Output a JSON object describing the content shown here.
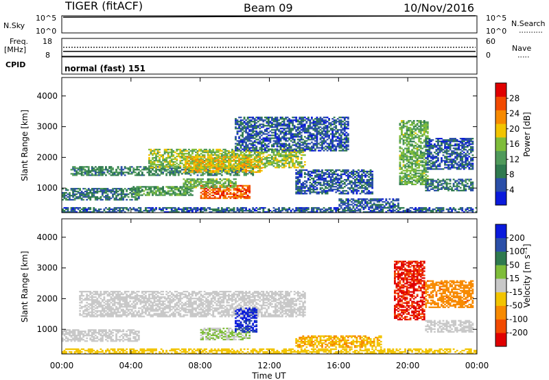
{
  "header": {
    "radar": "TIGER (fitACF)",
    "beam": "Beam 09",
    "date": "10/Nov/2016"
  },
  "top_panel": {
    "nsky_label": "N.Sky",
    "nsky_ticks": [
      "10^5",
      "10^0"
    ],
    "nsearch_label": "N.Search",
    "nsearch_ticks": [
      "10^5",
      "10^0"
    ],
    "freq_label_1": "Freq.",
    "freq_label_2": "[MHz]",
    "freq_ticks": [
      "18",
      "8"
    ],
    "nave_label": "Nave",
    "nave_ticks": [
      "60",
      "0"
    ],
    "cpid_label": "CPID",
    "cpid_text": "normal (fast) 151"
  },
  "colors": {
    "power_scale": [
      "#0a1adc",
      "#2b4fa8",
      "#2f7a4f",
      "#4f9a5a",
      "#7fbd3a",
      "#f2c400",
      "#f78a00",
      "#f24a00",
      "#e00000"
    ],
    "velocity_scale": [
      "#e00000",
      "#f24a00",
      "#f78a00",
      "#f2c400",
      "#c8c8c8",
      "#7fbd3a",
      "#2f7a4f",
      "#2b4fa8",
      "#0a1adc"
    ]
  },
  "chart_data": [
    {
      "type": "heatmap",
      "name": "power",
      "xlabel": "Time UT",
      "ylabel": "Slant Range [km]",
      "x_ticks": [
        "00:00",
        "04:00",
        "08:00",
        "12:00",
        "16:00",
        "20:00",
        "00:00"
      ],
      "x_hours": [
        0,
        4,
        8,
        12,
        16,
        20,
        24
      ],
      "y_ticks": [
        1000,
        2000,
        3000,
        4000
      ],
      "ylim": [
        200,
        4600
      ],
      "colorbar_label": "Power [dB]",
      "colorbar_ticks": [
        "4",
        "8",
        "12",
        "16",
        "20",
        "24",
        "28"
      ],
      "colorbar_range": [
        0,
        32
      ],
      "regions": [
        {
          "t0": 0,
          "t1": 24,
          "r0": 200,
          "r1": 350,
          "value": 6
        },
        {
          "t0": 0,
          "t1": 4.5,
          "r0": 600,
          "r1": 1000,
          "value": 8
        },
        {
          "t0": 4,
          "t1": 7.5,
          "r0": 750,
          "r1": 1050,
          "value": 12
        },
        {
          "t0": 0.5,
          "t1": 11,
          "r0": 1400,
          "r1": 1700,
          "value": 10
        },
        {
          "t0": 5,
          "t1": 14,
          "r0": 1650,
          "r1": 2250,
          "value": 16
        },
        {
          "t0": 7,
          "t1": 11.5,
          "r0": 1500,
          "r1": 2000,
          "value": 20
        },
        {
          "t0": 8,
          "t1": 10.8,
          "r0": 650,
          "r1": 1100,
          "value": 26
        },
        {
          "t0": 7,
          "t1": 10,
          "r0": 1000,
          "r1": 1300,
          "value": 14
        },
        {
          "t0": 10,
          "t1": 16.5,
          "r0": 2200,
          "r1": 3300,
          "value": 6
        },
        {
          "t0": 13.5,
          "t1": 18,
          "r0": 800,
          "r1": 1600,
          "value": 6
        },
        {
          "t0": 16,
          "t1": 19.5,
          "r0": 350,
          "r1": 650,
          "value": 6
        },
        {
          "t0": 19.5,
          "t1": 21.2,
          "r0": 1100,
          "r1": 3200,
          "value": 14
        },
        {
          "t0": 21,
          "t1": 23.8,
          "r0": 900,
          "r1": 1300,
          "value": 8
        },
        {
          "t0": 21,
          "t1": 23.8,
          "r0": 1600,
          "r1": 2600,
          "value": 6
        }
      ]
    },
    {
      "type": "heatmap",
      "name": "velocity",
      "xlabel": "Time UT",
      "ylabel": "Slant Range [km]",
      "x_ticks": [
        "00:00",
        "04:00",
        "08:00",
        "12:00",
        "16:00",
        "20:00",
        "00:00"
      ],
      "x_hours": [
        0,
        4,
        8,
        12,
        16,
        20,
        24
      ],
      "y_ticks": [
        1000,
        2000,
        3000,
        4000
      ],
      "ylim": [
        200,
        4600
      ],
      "colorbar_label": "Velocity [m s⁻¹]",
      "colorbar_ticks": [
        "-200",
        "-100",
        "-50",
        "-15",
        "15",
        "50",
        "100",
        "200"
      ],
      "colorbar_range": [
        -250,
        250
      ],
      "regions": [
        {
          "t0": 0,
          "t1": 24,
          "r0": 200,
          "r1": 350,
          "value": -60
        },
        {
          "t0": 0,
          "t1": 4.5,
          "r0": 600,
          "r1": 1000,
          "value": 0
        },
        {
          "t0": 1,
          "t1": 14,
          "r0": 1400,
          "r1": 2250,
          "value": 0
        },
        {
          "t0": 8,
          "t1": 10.8,
          "r0": 650,
          "r1": 1050,
          "value": 30
        },
        {
          "t0": 10,
          "t1": 11.2,
          "r0": 900,
          "r1": 1700,
          "value": 200
        },
        {
          "t0": 13.5,
          "t1": 18.5,
          "r0": 400,
          "r1": 800,
          "value": -80
        },
        {
          "t0": 19.2,
          "t1": 21.0,
          "r0": 1300,
          "r1": 3200,
          "value": -200
        },
        {
          "t0": 21,
          "t1": 23.8,
          "r0": 900,
          "r1": 1300,
          "value": 0
        },
        {
          "t0": 21,
          "t1": 23.8,
          "r0": 1700,
          "r1": 2600,
          "value": -120
        }
      ]
    }
  ]
}
